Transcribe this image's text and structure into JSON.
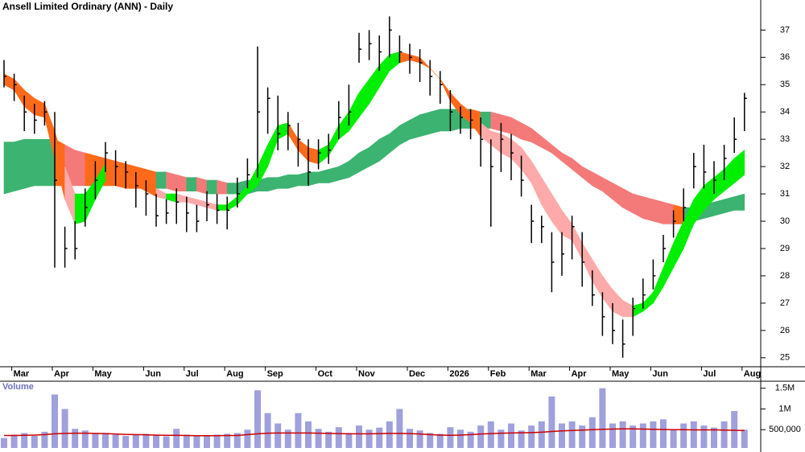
{
  "chart_data": {
    "type": "ohlc",
    "title": "Ansell Limited Ordinary (ANN) - Daily",
    "categories": [
      null,
      "Mar",
      null,
      null,
      null,
      "Apr",
      null,
      null,
      null,
      "May",
      null,
      null,
      null,
      null,
      "Jun",
      null,
      null,
      null,
      "Jul",
      null,
      null,
      null,
      "Aug",
      null,
      null,
      null,
      "Sep",
      null,
      null,
      null,
      null,
      "Oct",
      null,
      null,
      null,
      "Nov",
      null,
      null,
      null,
      null,
      "Dec",
      null,
      null,
      null,
      "2026",
      null,
      null,
      null,
      "Feb",
      null,
      null,
      null,
      "Mar",
      null,
      null,
      null,
      "Apr",
      null,
      null,
      null,
      "May",
      null,
      null,
      null,
      "Jun",
      null,
      null,
      null,
      null,
      "Jul",
      null,
      null,
      null,
      "Aug"
    ],
    "ylim": [
      24.7,
      38.1
    ],
    "yticks": [
      25,
      26,
      27,
      28,
      29,
      30,
      31,
      32,
      33,
      34,
      35,
      36,
      37
    ],
    "grid": false,
    "price": {
      "color": "#000000",
      "high": [
        35.9,
        35.4,
        34.6,
        34.3,
        34.4,
        34.0,
        29.8,
        30.0,
        31.2,
        32.2,
        32.9,
        32.6,
        32.2,
        31.8,
        31.5,
        31.0,
        30.8,
        31.2,
        30.9,
        30.6,
        31.1,
        31.0,
        30.9,
        31.6,
        32.3,
        36.4,
        34.9,
        34.6,
        34.0,
        33.6,
        33.0,
        33.0,
        33.2,
        34.4,
        35.0,
        36.9,
        37.0,
        36.8,
        37.5,
        36.8,
        36.5,
        36.3,
        35.9,
        35.5,
        34.8,
        34.2,
        34.1,
        33.8,
        33.0,
        33.6,
        33.2,
        32.4,
        30.6,
        30.2,
        29.6,
        29.6,
        30.2,
        29.6,
        28.2,
        27.4,
        27.0,
        26.4,
        27.2,
        27.9,
        28.6,
        29.5,
        30.4,
        31.2,
        32.5,
        32.8,
        32.2,
        32.8,
        33.8,
        34.7
      ],
      "low": [
        34.9,
        34.4,
        33.3,
        33.2,
        33.5,
        28.3,
        28.3,
        28.6,
        29.8,
        30.8,
        31.8,
        31.3,
        31.2,
        30.5,
        30.2,
        29.8,
        29.9,
        29.9,
        29.6,
        29.6,
        30.0,
        29.9,
        29.7,
        30.5,
        31.2,
        31.6,
        33.2,
        32.6,
        32.6,
        32.0,
        31.3,
        31.9,
        32.1,
        33.0,
        33.5,
        35.8,
        35.9,
        35.5,
        36.0,
        35.8,
        35.4,
        35.1,
        34.6,
        34.3,
        33.3,
        33.2,
        33.0,
        32.0,
        29.8,
        31.8,
        31.5,
        30.9,
        29.2,
        29.2,
        27.4,
        28.0,
        28.6,
        27.6,
        26.9,
        25.8,
        25.5,
        25.0,
        25.8,
        26.8,
        27.5,
        28.5,
        29.4,
        30.0,
        31.2,
        31.2,
        31.0,
        31.5,
        32.5,
        33.3
      ],
      "close": [
        35.3,
        35.0,
        34.0,
        33.7,
        34.0,
        31.5,
        29.0,
        29.0,
        30.5,
        31.5,
        32.5,
        32.0,
        31.8,
        31.3,
        31.0,
        30.2,
        30.3,
        30.7,
        30.3,
        30.0,
        30.6,
        30.4,
        30.4,
        31.0,
        31.7,
        34.0,
        34.5,
        33.2,
        33.5,
        33.0,
        31.8,
        32.5,
        32.6,
        33.8,
        34.0,
        36.3,
        36.5,
        36.2,
        37.0,
        36.2,
        36.0,
        35.8,
        35.3,
        35.0,
        34.0,
        33.8,
        33.7,
        33.0,
        32.0,
        33.0,
        32.5,
        31.5,
        30.0,
        29.8,
        28.5,
        28.8,
        29.8,
        28.5,
        27.3,
        26.5,
        26.0,
        25.5,
        26.8,
        27.3,
        28.0,
        29.0,
        30.0,
        30.5,
        32.0,
        31.8,
        31.5,
        32.3,
        33.0,
        34.5
      ]
    },
    "long_band": {
      "rising_color": "#3cb371",
      "falling_color": "#ff6a1a",
      "falling_below_color": "#f47a7a",
      "upper": [
        32.9,
        32.9,
        33.0,
        33.0,
        33.0,
        33.0,
        32.8,
        32.6,
        32.5,
        32.4,
        32.3,
        32.2,
        32.1,
        32.0,
        31.9,
        31.8,
        31.8,
        31.7,
        31.6,
        31.6,
        31.5,
        31.5,
        31.4,
        31.4,
        31.5,
        31.5,
        31.6,
        31.6,
        31.7,
        31.7,
        31.8,
        31.8,
        31.9,
        32.0,
        32.2,
        32.5,
        32.7,
        33.0,
        33.2,
        33.5,
        33.7,
        33.9,
        34.0,
        34.1,
        34.1,
        34.1,
        34.1,
        34.0,
        34.0,
        33.9,
        33.8,
        33.6,
        33.4,
        33.1,
        32.8,
        32.5,
        32.3,
        32.0,
        31.8,
        31.6,
        31.4,
        31.2,
        31.0,
        30.9,
        30.8,
        30.7,
        30.6,
        30.5,
        30.5,
        30.6,
        30.7,
        30.8,
        30.9,
        31.0
      ],
      "lower": [
        31.0,
        31.1,
        31.2,
        31.3,
        31.3,
        31.3,
        31.3,
        31.3,
        31.3,
        31.3,
        31.3,
        31.3,
        31.2,
        31.2,
        31.2,
        31.2,
        31.2,
        31.1,
        31.1,
        31.1,
        31.0,
        31.0,
        31.0,
        31.0,
        31.0,
        31.1,
        31.1,
        31.2,
        31.2,
        31.3,
        31.3,
        31.4,
        31.4,
        31.5,
        31.6,
        31.8,
        32.0,
        32.2,
        32.5,
        32.8,
        33.0,
        33.1,
        33.2,
        33.3,
        33.3,
        33.4,
        33.4,
        33.4,
        33.4,
        33.3,
        33.2,
        33.0,
        32.9,
        32.7,
        32.5,
        32.2,
        31.9,
        31.6,
        31.3,
        31.1,
        30.8,
        30.5,
        30.3,
        30.1,
        30.0,
        29.9,
        29.9,
        29.9,
        30.0,
        30.1,
        30.2,
        30.3,
        30.4,
        30.4
      ]
    },
    "short_band": {
      "rising_color": "#00ee00",
      "falling_color": "#ff6a1a",
      "falling_below_color": "#ffaaaa",
      "upper": [
        35.4,
        35.2,
        34.8,
        34.5,
        34.3,
        33.3,
        32.0,
        31.0,
        31.0,
        31.5,
        32.1,
        32.0,
        31.8,
        31.6,
        31.4,
        31.2,
        31.0,
        31.0,
        30.9,
        30.8,
        30.7,
        30.6,
        30.6,
        30.9,
        31.3,
        32.0,
        32.8,
        33.5,
        33.6,
        33.0,
        32.7,
        32.6,
        32.8,
        33.5,
        34.0,
        34.7,
        35.2,
        35.7,
        36.1,
        36.2,
        36.1,
        36.0,
        35.6,
        35.2,
        34.7,
        34.3,
        34.0,
        33.6,
        33.3,
        33.2,
        33.0,
        32.7,
        32.2,
        31.6,
        31.0,
        30.4,
        29.9,
        29.2,
        28.6,
        28.0,
        27.5,
        27.1,
        26.9,
        27.0,
        27.4,
        28.3,
        29.2,
        30.0,
        30.8,
        31.3,
        31.6,
        31.9,
        32.3,
        32.6
      ],
      "lower": [
        35.0,
        34.8,
        34.2,
        33.9,
        33.8,
        32.3,
        30.8,
        29.9,
        30.0,
        30.8,
        31.5,
        31.6,
        31.5,
        31.3,
        31.1,
        30.9,
        30.8,
        30.7,
        30.7,
        30.6,
        30.5,
        30.4,
        30.4,
        30.6,
        31.0,
        31.3,
        32.0,
        33.0,
        33.2,
        32.6,
        32.2,
        32.1,
        32.4,
        33.0,
        33.3,
        33.8,
        34.3,
        34.9,
        35.5,
        35.8,
        35.9,
        35.8,
        35.6,
        35.2,
        34.4,
        33.9,
        33.6,
        33.1,
        32.8,
        32.5,
        32.3,
        31.9,
        31.4,
        30.6,
        30.0,
        29.5,
        29.3,
        28.6,
        27.8,
        27.2,
        26.7,
        26.5,
        26.5,
        26.7,
        27.0,
        27.6,
        28.3,
        29.0,
        29.9,
        30.4,
        30.8,
        31.1,
        31.4,
        31.7
      ]
    },
    "volume": {
      "label": "Volume",
      "color": "#8080d0",
      "average_color": "#cc0000",
      "ylim": [
        0,
        1650000
      ],
      "yticks": [
        {
          "value": 500000,
          "label": "500,000"
        },
        {
          "value": 1000000,
          "label": "1M"
        },
        {
          "value": 1500000,
          "label": "1.5M"
        }
      ],
      "values": [
        300000,
        380000,
        420000,
        350000,
        450000,
        1350000,
        1000000,
        520000,
        480000,
        400000,
        420000,
        380000,
        350000,
        380000,
        400000,
        360000,
        340000,
        520000,
        380000,
        350000,
        360000,
        380000,
        400000,
        420000,
        500000,
        1450000,
        900000,
        650000,
        500000,
        900000,
        700000,
        520000,
        450000,
        560000,
        420000,
        600000,
        500000,
        550000,
        700000,
        1000000,
        520000,
        480000,
        420000,
        400000,
        560000,
        500000,
        450000,
        600000,
        700000,
        500000,
        650000,
        480000,
        600000,
        700000,
        1300000,
        650000,
        700000,
        600000,
        800000,
        1500000,
        650000,
        700000,
        600000,
        650000,
        700000,
        750000,
        500000,
        650000,
        700000,
        600000,
        550000,
        700000,
        950000,
        500000
      ],
      "average": [
        360000,
        360000,
        365000,
        370000,
        380000,
        400000,
        410000,
        415000,
        415000,
        410000,
        405000,
        395000,
        385000,
        380000,
        375000,
        370000,
        365000,
        365000,
        360000,
        355000,
        355000,
        355000,
        360000,
        360000,
        380000,
        400000,
        415000,
        420000,
        420000,
        420000,
        420000,
        415000,
        410000,
        405000,
        400000,
        400000,
        400000,
        405000,
        410000,
        410000,
        405000,
        395000,
        380000,
        370000,
        365000,
        370000,
        380000,
        395000,
        405000,
        415000,
        420000,
        425000,
        430000,
        440000,
        455000,
        470000,
        480000,
        490000,
        500000,
        510000,
        515000,
        520000,
        520000,
        515000,
        510000,
        505000,
        500000,
        500000,
        495000,
        495000,
        495000,
        490000,
        485000,
        480000
      ]
    }
  }
}
